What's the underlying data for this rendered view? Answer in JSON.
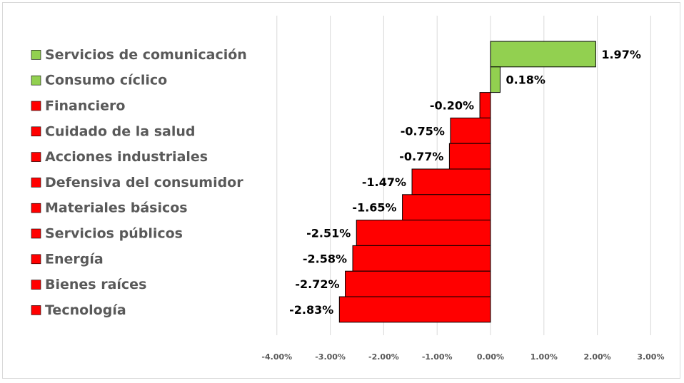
{
  "chart_data": {
    "type": "bar",
    "orientation": "horizontal",
    "title": "",
    "xlabel": "",
    "ylabel": "",
    "xlim": [
      -4,
      3
    ],
    "ticks": [
      "-4.00%",
      "-3.00%",
      "-2.00%",
      "-1.00%",
      "0.00%",
      "1.00%",
      "2.00%",
      "3.00%"
    ],
    "tick_values": [
      -4,
      -3,
      -2,
      -1,
      0,
      1,
      2,
      3
    ],
    "grid": true,
    "legend": "left",
    "colors": {
      "positive": "#92d050",
      "negative": "#ff0000",
      "grid": "#d9d9d9",
      "bar_border": "#000000"
    },
    "categories": [
      "Servicios de comunicación",
      "Consumo cíclico",
      "Financiero",
      "Cuidado de la salud",
      "Acciones industriales",
      "Defensiva del consumidor",
      "Materiales básicos",
      "Servicios públicos",
      "Energía",
      "Bienes raíces",
      "Tecnología"
    ],
    "values": [
      1.97,
      0.18,
      -0.2,
      -0.75,
      -0.77,
      -1.47,
      -1.65,
      -2.51,
      -2.58,
      -2.72,
      -2.83
    ],
    "data_labels": [
      "1.97%",
      "0.18%",
      "-0.20%",
      "-0.75%",
      "-0.77%",
      "-1.47%",
      "-1.65%",
      "-2.51%",
      "-2.58%",
      "-2.72%",
      "-2.83%"
    ]
  }
}
